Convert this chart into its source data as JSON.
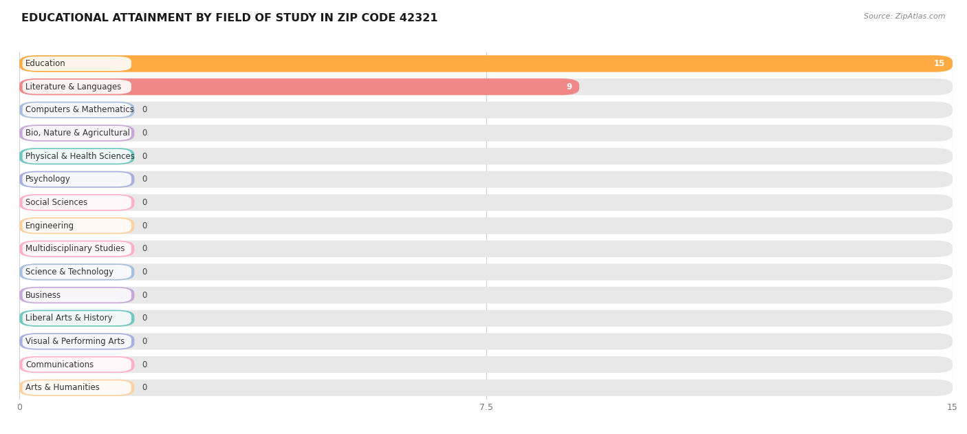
{
  "title": "EDUCATIONAL ATTAINMENT BY FIELD OF STUDY IN ZIP CODE 42321",
  "source": "Source: ZipAtlas.com",
  "categories": [
    "Education",
    "Literature & Languages",
    "Computers & Mathematics",
    "Bio, Nature & Agricultural",
    "Physical & Health Sciences",
    "Psychology",
    "Social Sciences",
    "Engineering",
    "Multidisciplinary Studies",
    "Science & Technology",
    "Business",
    "Liberal Arts & History",
    "Visual & Performing Arts",
    "Communications",
    "Arts & Humanities"
  ],
  "values": [
    15,
    9,
    0,
    0,
    0,
    0,
    0,
    0,
    0,
    0,
    0,
    0,
    0,
    0,
    0
  ],
  "bar_colors": [
    "#FFAA42",
    "#F08888",
    "#A8C0E0",
    "#C8A8D8",
    "#70C8C0",
    "#A8B0E0",
    "#FFB0C8",
    "#FFD0A0",
    "#FFB0C8",
    "#A8C0E0",
    "#C8A8D8",
    "#70C8C0",
    "#A8B0E0",
    "#FFB0C8",
    "#FFD0A0"
  ],
  "xlim": [
    0,
    15
  ],
  "xticks": [
    0,
    7.5,
    15
  ],
  "background_color": "#ffffff",
  "row_bg_even": "#f5f5f5",
  "row_bg_odd": "#ffffff",
  "bar_bg_color": "#e8e8e8",
  "title_fontsize": 11.5,
  "label_fontsize": 8.5,
  "value_fontsize": 8.5,
  "source_fontsize": 8.0
}
